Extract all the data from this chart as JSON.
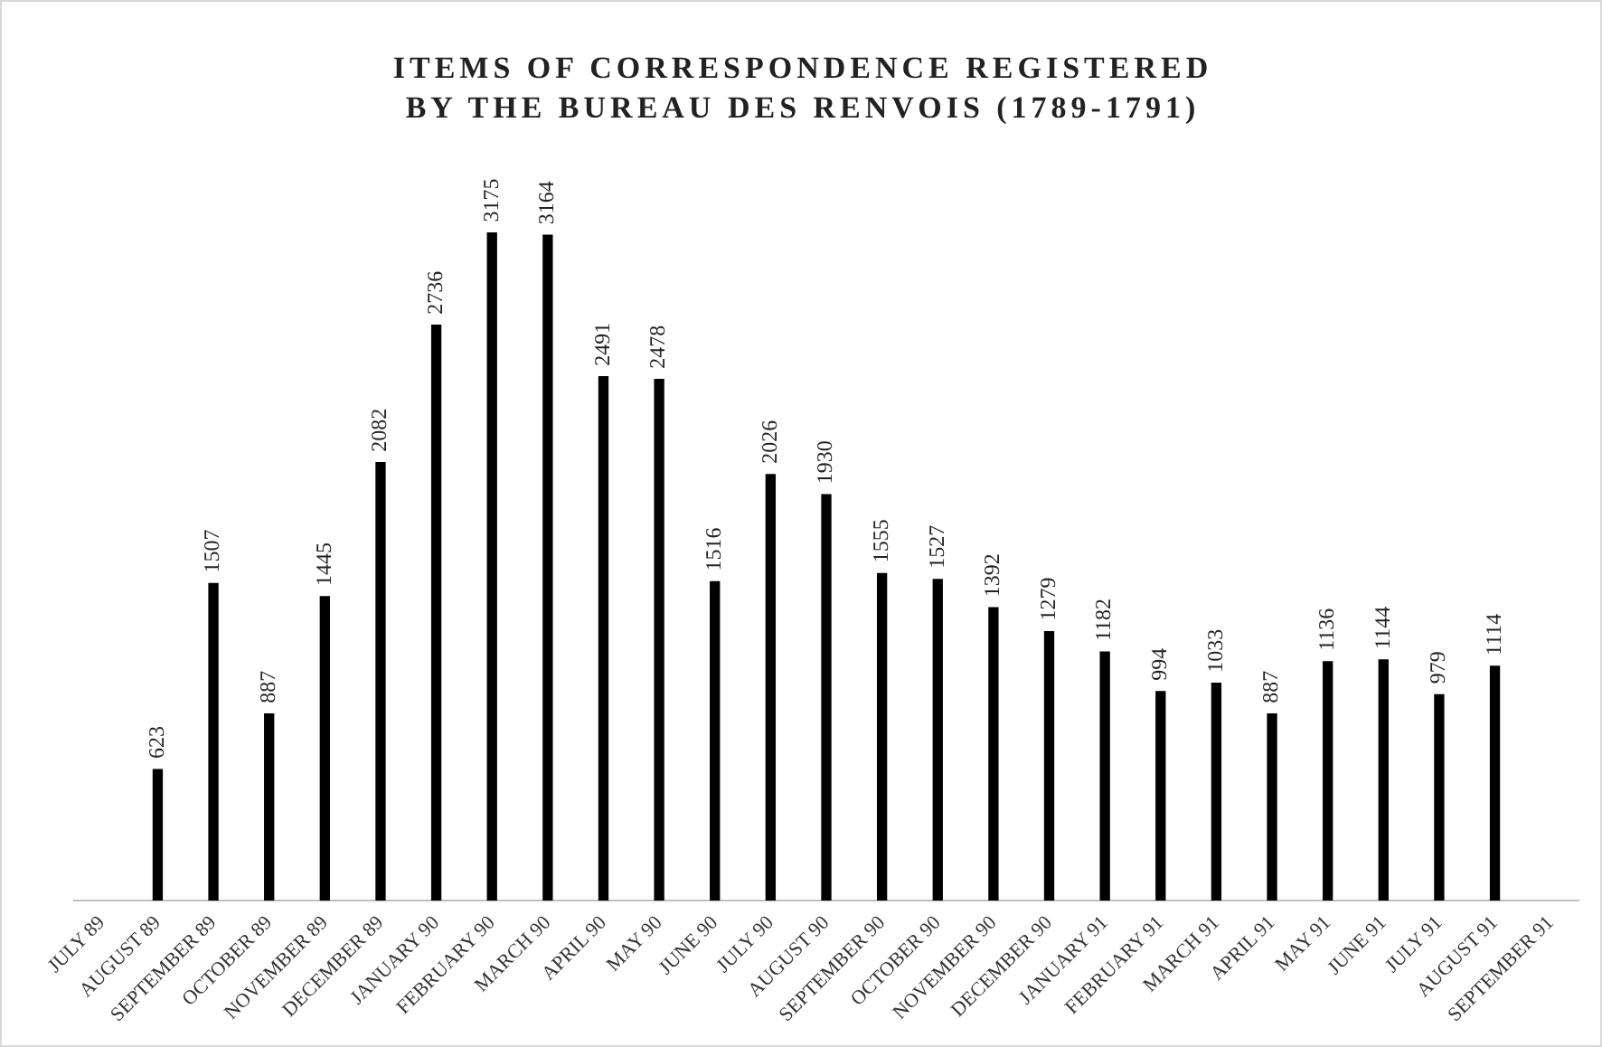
{
  "chart_data": {
    "type": "bar",
    "title": "ITEMS OF CORRESPONDENCE REGISTERED BY THE BUREAU DES RENVOIS (1789-1791)",
    "categories": [
      "JULY 89",
      "AUGUST 89",
      "SEPTEMBER 89",
      "OCTOBER 89",
      "NOVEMBER 89",
      "DECEMBER 89",
      "JANUARY 90",
      "FEBRUARY 90",
      "MARCH 90",
      "APRIL 90",
      "MAY 90",
      "JUNE 90",
      "JULY 90",
      "AUGUST 90",
      "SEPTEMBER 90",
      "OCTOBER 90",
      "NOVEMBER 90",
      "DECEMBER 90",
      "JANUARY 91",
      "FEBRUARY 91",
      "MARCH 91",
      "APRIL 91",
      "MAY 91",
      "JUNE 91",
      "JULY 91",
      "AUGUST 91",
      "SEPTEMBER 91"
    ],
    "values": [
      null,
      623,
      1507,
      887,
      1445,
      2082,
      2736,
      3175,
      3164,
      2491,
      2478,
      1516,
      2026,
      1930,
      1555,
      1527,
      1392,
      1279,
      1182,
      994,
      1033,
      887,
      1136,
      1144,
      979,
      1114,
      null
    ],
    "color": "#000000",
    "data_labels": true,
    "grid": false,
    "legend": false
  }
}
